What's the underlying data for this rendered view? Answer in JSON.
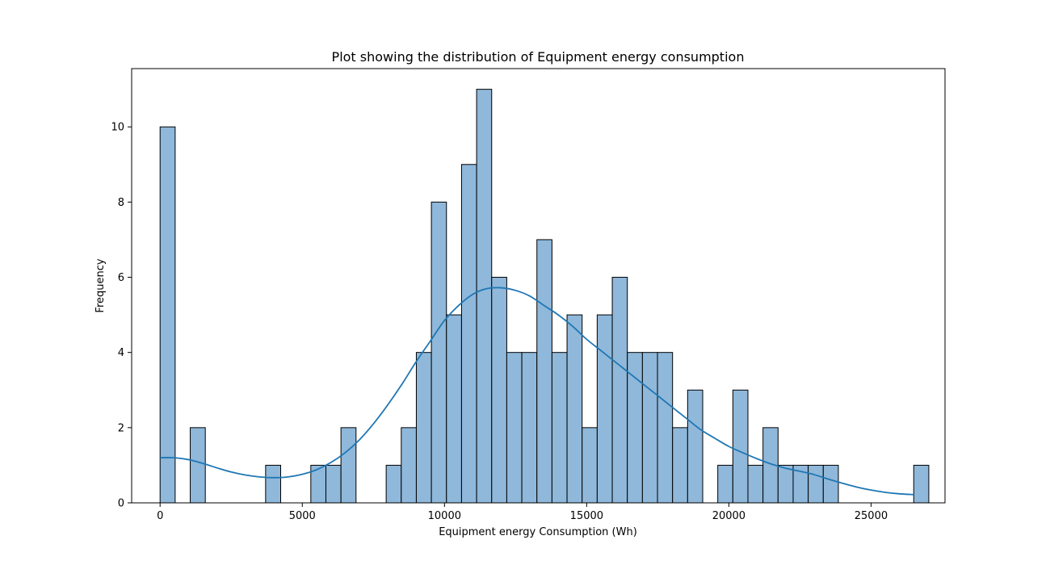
{
  "chart_data": {
    "type": "bar",
    "title": "Plot showing the distribution of Equipment energy consumption",
    "xlabel": "Equipment energy Consumption (Wh)",
    "ylabel": "Frequency",
    "xlim": [
      -1000,
      27600
    ],
    "ylim": [
      0,
      11.55
    ],
    "xticks": [
      0,
      5000,
      10000,
      15000,
      20000,
      25000
    ],
    "yticks": [
      0,
      2,
      4,
      6,
      8,
      10
    ],
    "bin_start": 0,
    "bin_width": 530,
    "counts": [
      10,
      0,
      2,
      0,
      0,
      0,
      0,
      1,
      0,
      0,
      1,
      1,
      2,
      0,
      0,
      1,
      2,
      4,
      8,
      5,
      9,
      11,
      6,
      4,
      4,
      7,
      4,
      5,
      2,
      5,
      6,
      4,
      4,
      4,
      2,
      3,
      0,
      1,
      3,
      1,
      2,
      1,
      1,
      1,
      1,
      0,
      0,
      0,
      0,
      0,
      1
    ],
    "kde": {
      "x": [
        0,
        500,
        1000,
        1500,
        2000,
        2500,
        3000,
        3500,
        4000,
        4500,
        5000,
        5500,
        6000,
        6500,
        7000,
        7500,
        8000,
        8500,
        9000,
        9500,
        10000,
        10500,
        11000,
        11500,
        12000,
        12500,
        13000,
        13500,
        14000,
        14500,
        15000,
        15500,
        16000,
        16500,
        17000,
        17500,
        18000,
        18500,
        19000,
        19500,
        20000,
        20500,
        21000,
        21500,
        22000,
        22500,
        23000,
        23500,
        24000,
        24500,
        25000,
        25500,
        26000,
        26500
      ],
      "y": [
        1.2,
        1.2,
        1.15,
        1.05,
        0.93,
        0.82,
        0.74,
        0.69,
        0.67,
        0.69,
        0.76,
        0.88,
        1.07,
        1.33,
        1.67,
        2.1,
        2.6,
        3.15,
        3.75,
        4.3,
        4.85,
        5.25,
        5.55,
        5.7,
        5.72,
        5.65,
        5.5,
        5.25,
        5.0,
        4.7,
        4.35,
        4.05,
        3.75,
        3.45,
        3.15,
        2.85,
        2.55,
        2.25,
        1.95,
        1.72,
        1.5,
        1.33,
        1.17,
        1.03,
        0.92,
        0.84,
        0.75,
        0.63,
        0.52,
        0.42,
        0.34,
        0.28,
        0.24,
        0.22
      ]
    },
    "bar_color": "#8fb8da",
    "bar_edge": "#000000",
    "kde_color": "#1f77b4",
    "grid": false,
    "legend": "none"
  }
}
